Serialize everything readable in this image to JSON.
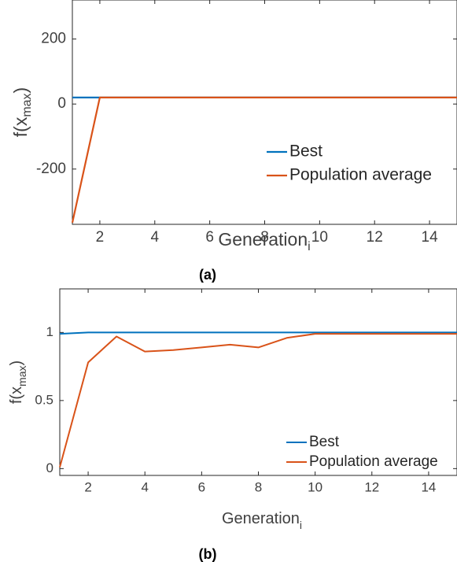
{
  "chart_data": [
    {
      "type": "line",
      "caption": "(a)",
      "xlabel": "Generation",
      "xlabel_sub": "i",
      "ylabel": "f(x",
      "ylabel_sub": "max",
      "ylabel_tail": ")",
      "xlim": [
        1,
        15
      ],
      "ylim": [
        -370,
        320
      ],
      "xticks": [
        2,
        4,
        6,
        8,
        10,
        12,
        14
      ],
      "yticks": [
        -200,
        0,
        200
      ],
      "legend_position": "bottom-right",
      "colors": {
        "best": "#0072BD",
        "average": "#D95319"
      },
      "series": [
        {
          "name": "Best",
          "color": "#0072BD",
          "x": [
            1,
            2,
            3,
            4,
            5,
            6,
            7,
            8,
            9,
            10,
            11,
            12,
            13,
            14,
            15
          ],
          "y": [
            20,
            20,
            20,
            20,
            20,
            20,
            20,
            20,
            20,
            20,
            20,
            20,
            20,
            20,
            20
          ]
        },
        {
          "name": "Population average",
          "color": "#D95319",
          "x": [
            1,
            2,
            3,
            4,
            5,
            6,
            7,
            8,
            9,
            10,
            11,
            12,
            13,
            14,
            15
          ],
          "y": [
            -365,
            20,
            20,
            20,
            20,
            20,
            20,
            20,
            20,
            20,
            20,
            20,
            20,
            20,
            20
          ]
        }
      ]
    },
    {
      "type": "line",
      "caption": "(b)",
      "xlabel": "Generation",
      "xlabel_sub": "i",
      "ylabel": "f(x",
      "ylabel_sub": "max",
      "ylabel_tail": ")",
      "xlim": [
        1,
        15
      ],
      "ylim": [
        -0.05,
        1.32
      ],
      "xticks": [
        2,
        4,
        6,
        8,
        10,
        12,
        14
      ],
      "yticks": [
        0,
        0.5,
        1
      ],
      "legend_position": "bottom-right",
      "colors": {
        "best": "#0072BD",
        "average": "#D95319"
      },
      "series": [
        {
          "name": "Best",
          "color": "#0072BD",
          "x": [
            1,
            2,
            3,
            4,
            5,
            6,
            7,
            8,
            9,
            10,
            11,
            12,
            13,
            14,
            15
          ],
          "y": [
            0.99,
            1,
            1,
            1,
            1,
            1,
            1,
            1,
            1,
            1,
            1,
            1,
            1,
            1,
            1
          ]
        },
        {
          "name": "Population average",
          "color": "#D95319",
          "x": [
            1,
            2,
            3,
            4,
            5,
            6,
            7,
            8,
            9,
            10,
            11,
            12,
            13,
            14,
            15
          ],
          "y": [
            0.01,
            0.78,
            0.97,
            0.86,
            0.87,
            0.89,
            0.91,
            0.89,
            0.96,
            0.99,
            0.99,
            0.99,
            0.99,
            0.99,
            0.99
          ]
        }
      ]
    }
  ]
}
